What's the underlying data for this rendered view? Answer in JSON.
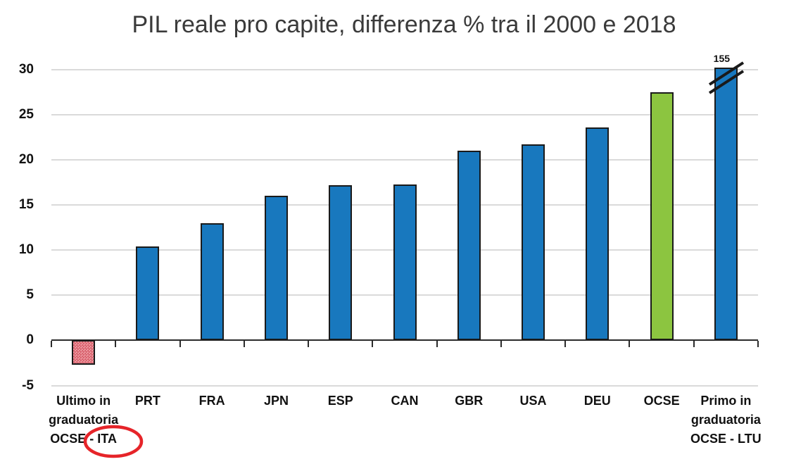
{
  "title": "PIL reale pro capite, differenza % tra il 2000 e 2018",
  "chart_data": {
    "type": "bar",
    "title": "PIL reale pro capite, differenza % tra il 2000 e 2018",
    "categories": [
      "Ultimo in\ngraduatoria\nOCSE - ITA",
      "PRT",
      "FRA",
      "JPN",
      "ESP",
      "CAN",
      "GBR",
      "USA",
      "DEU",
      "OCSE",
      "Primo in\ngraduatoria\nOCSE - LTU"
    ],
    "values": [
      -2.7,
      10.4,
      13,
      16,
      17.2,
      17.3,
      21,
      21.7,
      23.6,
      27.5,
      155
    ],
    "display_values": [
      -2.7,
      10.4,
      13,
      16,
      17.2,
      17.3,
      21,
      21.7,
      23.6,
      27.5,
      30.2
    ],
    "bar_styles": [
      "pink-dotted",
      "blue",
      "blue",
      "blue",
      "blue",
      "blue",
      "blue",
      "blue",
      "blue",
      "green",
      "blue"
    ],
    "value_labels": [
      "",
      "",
      "",
      "",
      "",
      "",
      "",
      "",
      "",
      "",
      "155"
    ],
    "xlabel": "",
    "ylabel": "",
    "ylim": [
      -5,
      30
    ],
    "yticks": [
      30,
      25,
      20,
      15,
      10,
      5,
      0,
      -5
    ],
    "grid": "horizontal",
    "legend": "none",
    "annotations": {
      "axis_break": {
        "category": "Primo in graduatoria OCSE - LTU",
        "true_value": 155,
        "shown_at": 30.2
      },
      "red_circle": {
        "around_text": "ITA",
        "category": "Ultimo in graduatoria OCSE - ITA"
      }
    }
  },
  "colors": {
    "bar_blue": "#1878BE",
    "bar_green": "#8CC540",
    "bar_pink_base": "#F6B3B9",
    "bar_pink_dot": "#D96470",
    "bar_border": "#1A1A1A",
    "gridline": "#DADADA",
    "axis_line": "#2B2B2B",
    "red_annotation": "#E62429",
    "text": "#111111",
    "title_text": "#3A3A3A"
  }
}
